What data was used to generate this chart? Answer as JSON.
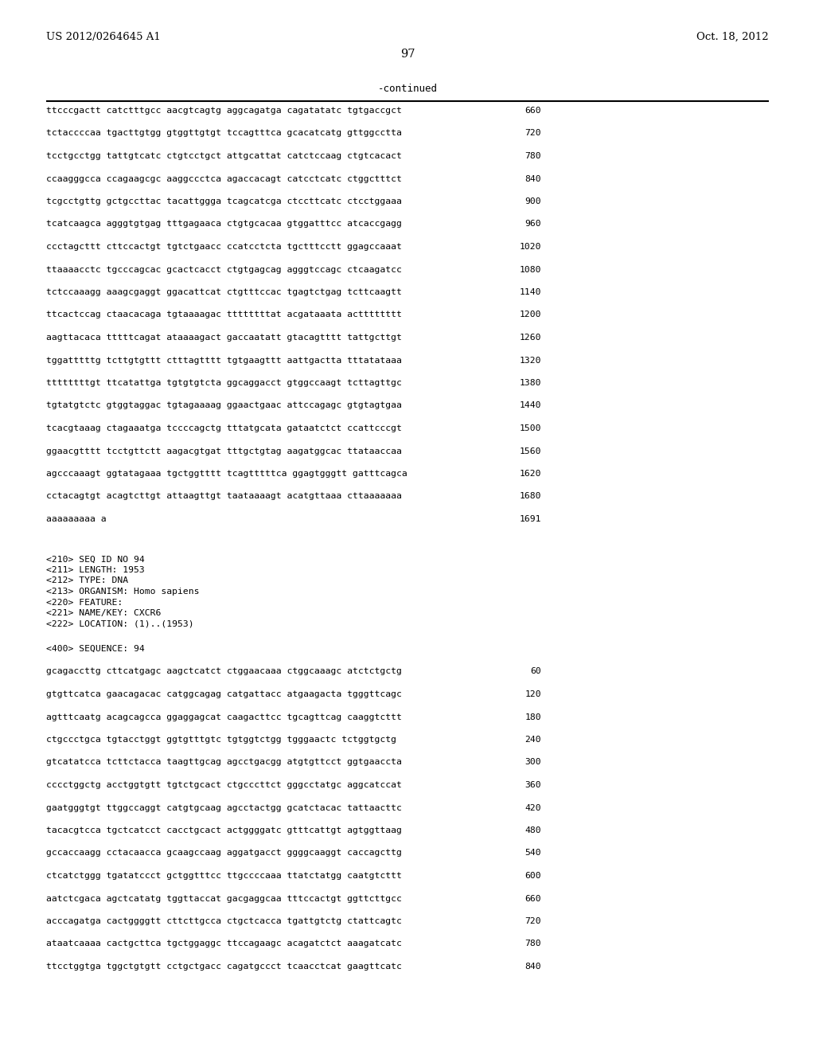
{
  "header_left": "US 2012/0264645 A1",
  "header_right": "Oct. 18, 2012",
  "page_number": "97",
  "continued_label": "-continued",
  "bg_color": "#ffffff",
  "text_color": "#000000",
  "font_size": 8.2,
  "header_font_size": 9.5,
  "page_num_font_size": 10.5,
  "continued_font_size": 9.0,
  "sequence_lines_top": [
    {
      "seq": "ttcccgactt catctttgcc aacgtcagtg aggcagatga cagatatatc tgtgaccgct",
      "num": "660"
    },
    {
      "seq": "tctaccccaa tgacttgtgg gtggttgtgt tccagtttca gcacatcatg gttggcctta",
      "num": "720"
    },
    {
      "seq": "tcctgcctgg tattgtcatc ctgtcctgct attgcattat catctccaag ctgtcacact",
      "num": "780"
    },
    {
      "seq": "ccaagggcca ccagaagcgc aaggccctca agaccacagt catcctcatc ctggctttct",
      "num": "840"
    },
    {
      "seq": "tcgcctgttg gctgccttac tacattggga tcagcatcga ctccttcatc ctcctggaaa",
      "num": "900"
    },
    {
      "seq": "tcatcaagca agggtgtgag tttgagaaca ctgtgcacaa gtggatttcc atcaccgagg",
      "num": "960"
    },
    {
      "seq": "ccctagcttt cttccactgt tgtctgaacc ccatcctcta tgctttcctt ggagccaaat",
      "num": "1020"
    },
    {
      "seq": "ttaaaacctc tgcccagcac gcactcacct ctgtgagcag agggtccagc ctcaagatcc",
      "num": "1080"
    },
    {
      "seq": "tctccaaagg aaagcgaggt ggacattcat ctgtttccac tgagtctgag tcttcaagtt",
      "num": "1140"
    },
    {
      "seq": "ttcactccag ctaacacaga tgtaaaagac ttttttttat acgataaata actttttttt",
      "num": "1200"
    },
    {
      "seq": "aagttacaca tttttcagat ataaaagact gaccaatatt gtacagtttt tattgcttgt",
      "num": "1260"
    },
    {
      "seq": "tggatttttg tcttgtgttt ctttagtttt tgtgaagttt aattgactta tttatataaa",
      "num": "1320"
    },
    {
      "seq": "ttttttttgt ttcatattga tgtgtgtcta ggcaggacct gtggccaagt tcttagttgc",
      "num": "1380"
    },
    {
      "seq": "tgtatgtctc gtggtaggac tgtagaaaag ggaactgaac attccagagc gtgtagtgaa",
      "num": "1440"
    },
    {
      "seq": "tcacgtaaag ctagaaatga tccccagctg tttatgcata gataatctct ccattcccgt",
      "num": "1500"
    },
    {
      "seq": "ggaacgtttt tcctgttctt aagacgtgat tttgctgtag aagatggcac ttataaccaa",
      "num": "1560"
    },
    {
      "seq": "agcccaaagt ggtatagaaa tgctggtttt tcagtttttca ggagtgggtt gatttcagca",
      "num": "1620"
    },
    {
      "seq": "cctacagtgt acagtcttgt attaagttgt taataaaagt acatgttaaa cttaaaaaaa",
      "num": "1680"
    },
    {
      "seq": "aaaaaaaaa a",
      "num": "1691"
    }
  ],
  "metadata_lines": [
    "<210> SEQ ID NO 94",
    "<211> LENGTH: 1953",
    "<212> TYPE: DNA",
    "<213> ORGANISM: Homo sapiens",
    "<220> FEATURE:",
    "<221> NAME/KEY: CXCR6",
    "<222> LOCATION: (1)..(1953)"
  ],
  "sequence_label": "<400> SEQUENCE: 94",
  "sequence_lines_bottom": [
    {
      "seq": "gcagaccttg cttcatgagc aagctcatct ctggaacaaa ctggcaaagc atctctgctg",
      "num": "60"
    },
    {
      "seq": "gtgttcatca gaacagacac catggcagag catgattacc atgaagacta tgggttcagc",
      "num": "120"
    },
    {
      "seq": "agtttcaatg acagcagcca ggaggagcat caagacttcc tgcagttcag caaggtcttt",
      "num": "180"
    },
    {
      "seq": "ctgccctgca tgtacctggt ggtgtttgtc tgtggtctgg tgggaactc tctggtgctg",
      "num": "240"
    },
    {
      "seq": "gtcatatcca tcttctacca taagttgcag agcctgacgg atgtgttcct ggtgaaccta",
      "num": "300"
    },
    {
      "seq": "cccctggctg acctggtgtt tgtctgcact ctgcccttct gggcctatgc aggcatccat",
      "num": "360"
    },
    {
      "seq": "gaatgggtgt ttggccaggt catgtgcaag agcctactgg gcatctacac tattaacttc",
      "num": "420"
    },
    {
      "seq": "tacacgtcca tgctcatcct cacctgcact actggggatc gtttcattgt agtggttaag",
      "num": "480"
    },
    {
      "seq": "gccaccaagg cctacaacca gcaagccaag aggatgacct ggggcaaggt caccagcttg",
      "num": "540"
    },
    {
      "seq": "ctcatctggg tgatatccct gctggtttcc ttgccccaaa ttatctatgg caatgtcttt",
      "num": "600"
    },
    {
      "seq": "aatctcgaca agctcatatg tggttaccat gacgaggcaa tttccactgt ggttcttgcc",
      "num": "660"
    },
    {
      "seq": "acccagatga cactggggtt cttcttgcca ctgctcacca tgattgtctg ctattcagtc",
      "num": "720"
    },
    {
      "seq": "ataatcaaaa cactgcttca tgctggaggc ttccagaagc acagatctct aaagatcatc",
      "num": "780"
    },
    {
      "seq": "ttcctggtga tggctgtgtt cctgctgacc cagatgccct tcaacctcat gaagttcatc",
      "num": "840"
    }
  ]
}
